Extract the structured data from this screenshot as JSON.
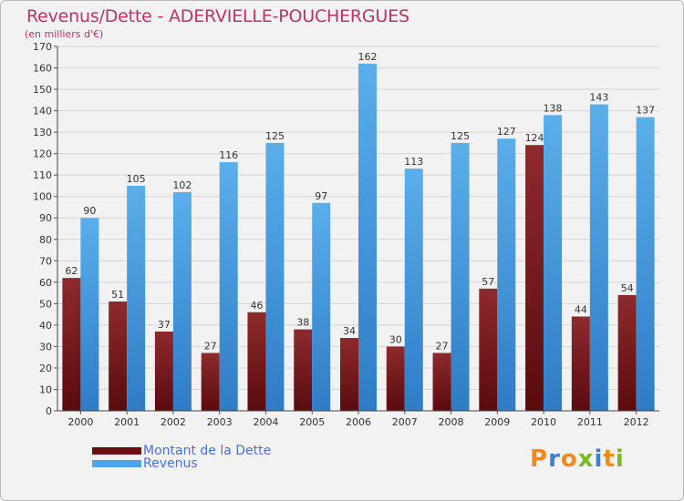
{
  "chart_data": {
    "type": "bar",
    "title": "Revenus/Dette - ADERVIELLE-POUCHERGUES",
    "subtitle": "(en milliers d'€)",
    "categories": [
      "2000",
      "2001",
      "2002",
      "2003",
      "2004",
      "2005",
      "2006",
      "2007",
      "2008",
      "2009",
      "2010",
      "2011",
      "2012"
    ],
    "series": [
      {
        "name": "Montant de la Dette",
        "values": [
          62,
          51,
          37,
          27,
          46,
          38,
          34,
          30,
          27,
          57,
          124,
          44,
          54
        ],
        "color": "#7a1a1e"
      },
      {
        "name": "Revenus",
        "values": [
          90,
          105,
          102,
          116,
          125,
          97,
          162,
          113,
          125,
          127,
          138,
          143,
          137
        ],
        "color": "#4fa3e6"
      }
    ],
    "ylim": [
      0,
      170
    ],
    "yticks": [
      0,
      10,
      20,
      30,
      40,
      50,
      60,
      70,
      80,
      90,
      100,
      110,
      120,
      130,
      140,
      150,
      160,
      170
    ],
    "grid": true,
    "legend_position": "bottom-left"
  },
  "logo": {
    "text": "Proxiti",
    "letters": [
      "P",
      "r",
      "o",
      "x",
      "i",
      "t",
      "i"
    ],
    "colors": [
      "#f08a1c",
      "#3a7fd0",
      "#f08a1c",
      "#7ab828",
      "#3a7fd0",
      "#f08a1c",
      "#7ab828"
    ]
  }
}
